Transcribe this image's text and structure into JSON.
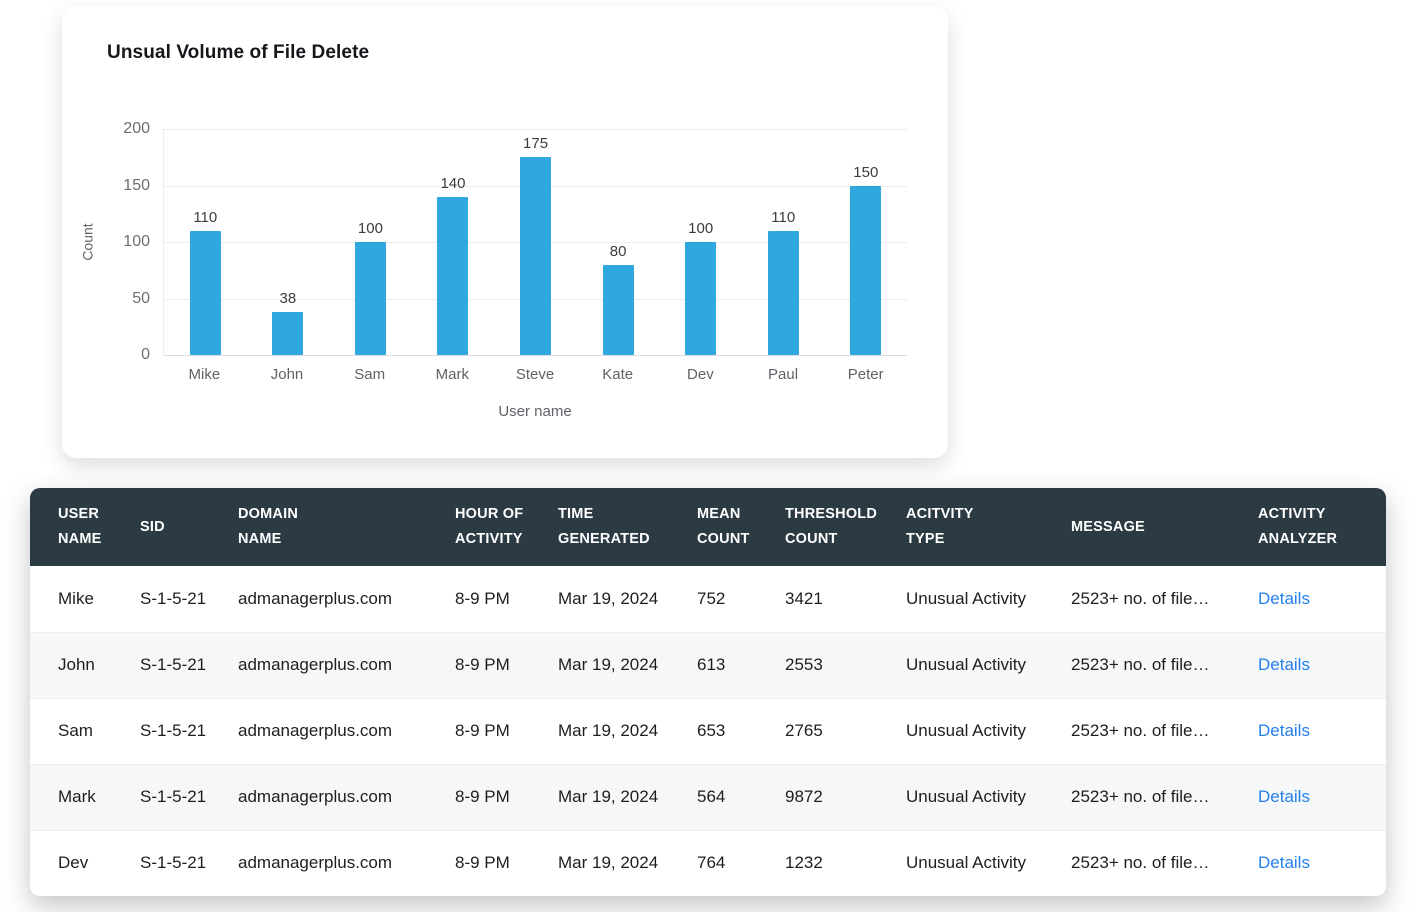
{
  "chart_data": {
    "type": "bar",
    "title": "Unsual Volume of File Delete",
    "categories": [
      "Mike",
      "John",
      "Sam",
      "Mark",
      "Steve",
      "Kate",
      "Dev",
      "Paul",
      "Peter"
    ],
    "values": [
      110,
      38,
      100,
      140,
      175,
      80,
      100,
      110,
      150
    ],
    "xlabel": "User name",
    "ylabel": "Count",
    "ylim": [
      0,
      200
    ],
    "yticks": [
      0,
      50,
      100,
      150,
      200
    ],
    "bar_color": "#2fa8e0",
    "grid": true,
    "legend": false
  },
  "table": {
    "columns": [
      {
        "key": "user_name",
        "label": "USER NAME"
      },
      {
        "key": "sid",
        "label": "SID"
      },
      {
        "key": "domain_name",
        "label": "DOMAIN NAME"
      },
      {
        "key": "hour_of_activity",
        "label": "HOUR OF ACTIVITY"
      },
      {
        "key": "time_generated",
        "label": "TIME GENERATED"
      },
      {
        "key": "mean_count",
        "label": "MEAN COUNT"
      },
      {
        "key": "threshold_count",
        "label": "THRESHOLD COUNT"
      },
      {
        "key": "activity_type",
        "label": "ACITVITY TYPE"
      },
      {
        "key": "message",
        "label": "MESSAGE"
      },
      {
        "key": "activity_analyzer",
        "label": "ACTIVITY ANALYZER"
      }
    ],
    "rows": [
      {
        "user_name": "Mike",
        "sid": "S-1-5-21",
        "domain_name": "admanagerplus.com",
        "hour_of_activity": "8-9 PM",
        "time_generated": "Mar 19, 2024",
        "mean_count": 752,
        "threshold_count": 3421,
        "activity_type": "Unusual Activity",
        "message": "2523+ no. of file…",
        "activity_analyzer": "Details"
      },
      {
        "user_name": "John",
        "sid": "S-1-5-21",
        "domain_name": "admanagerplus.com",
        "hour_of_activity": "8-9 PM",
        "time_generated": "Mar 19, 2024",
        "mean_count": 613,
        "threshold_count": 2553,
        "activity_type": "Unusual Activity",
        "message": "2523+ no. of file…",
        "activity_analyzer": "Details"
      },
      {
        "user_name": "Sam",
        "sid": "S-1-5-21",
        "domain_name": "admanagerplus.com",
        "hour_of_activity": "8-9 PM",
        "time_generated": "Mar 19, 2024",
        "mean_count": 653,
        "threshold_count": 2765,
        "activity_type": "Unusual Activity",
        "message": "2523+ no. of file…",
        "activity_analyzer": "Details"
      },
      {
        "user_name": "Mark",
        "sid": "S-1-5-21",
        "domain_name": "admanagerplus.com",
        "hour_of_activity": "8-9 PM",
        "time_generated": "Mar 19, 2024",
        "mean_count": 564,
        "threshold_count": 9872,
        "activity_type": "Unusual Activity",
        "message": "2523+ no. of file…",
        "activity_analyzer": "Details"
      },
      {
        "user_name": "Dev",
        "sid": "S-1-5-21",
        "domain_name": "admanagerplus.com",
        "hour_of_activity": "8-9 PM",
        "time_generated": "Mar 19, 2024",
        "mean_count": 764,
        "threshold_count": 1232,
        "activity_type": "Unusual Activity",
        "message": "2523+ no. of file…",
        "activity_analyzer": "Details"
      }
    ],
    "colors": {
      "header_bg": "#2c3a44",
      "details_link": "#2680eb",
      "row_alt_bg": "#f6f7f8",
      "bar_color": "#2fa8e0"
    }
  }
}
